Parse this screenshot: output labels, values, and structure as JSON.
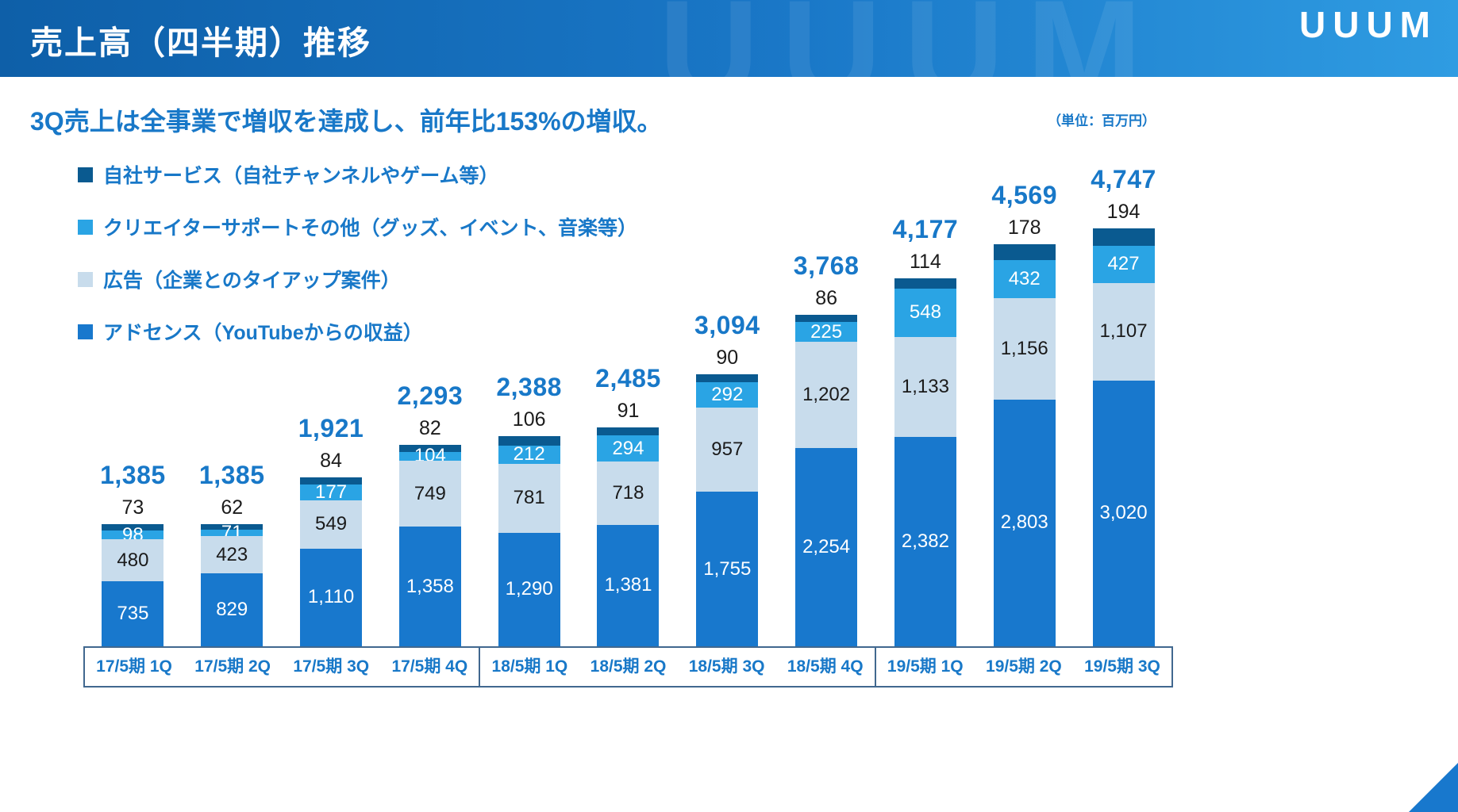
{
  "header": {
    "title": "売上高（四半期）推移",
    "logo": "UUUM"
  },
  "subtitle": "3Q売上は全事業で増収を達成し、前年比153%の増収。",
  "unit_note": "（単位：百万円）",
  "chart_data": {
    "type": "bar",
    "stacked": true,
    "title": "売上高（四半期）推移",
    "unit": "百万円",
    "grid": false,
    "legend_position": "top-left",
    "categories": [
      "17/5期 1Q",
      "17/5期 2Q",
      "17/5期 3Q",
      "17/5期 4Q",
      "18/5期 1Q",
      "18/5期 2Q",
      "18/5期 3Q",
      "18/5期 4Q",
      "19/5期 1Q",
      "19/5期 2Q",
      "19/5期 3Q"
    ],
    "series": [
      {
        "key": "adsense",
        "name": "アドセンス（YouTubeからの収益）",
        "color": "#1878cd",
        "label_color": "#ffffff",
        "values": [
          735,
          829,
          1110,
          1358,
          1290,
          1381,
          1755,
          2254,
          2382,
          2803,
          3020
        ]
      },
      {
        "key": "advertising",
        "name": "広告（企業とのタイアップ案件）",
        "color": "#c8dcec",
        "label_color": "#1a1a1a",
        "values": [
          480,
          423,
          549,
          749,
          781,
          718,
          957,
          1202,
          1133,
          1156,
          1107
        ]
      },
      {
        "key": "creator-support",
        "name": "クリエイターサポートその他（グッズ、イベント、音楽等）",
        "color": "#2aa4e4",
        "label_color": "#ffffff",
        "values": [
          98,
          71,
          177,
          104,
          212,
          294,
          292,
          225,
          548,
          432,
          427
        ]
      },
      {
        "key": "own-service",
        "name": "自社サービス（自社チャンネルやゲーム等）",
        "color": "#0a5a90",
        "label_color": "#111111",
        "label_position": "above",
        "values": [
          73,
          62,
          84,
          82,
          106,
          91,
          90,
          86,
          114,
          178,
          194
        ]
      }
    ],
    "totals": [
      1385,
      1385,
      1921,
      2293,
      2388,
      2485,
      3094,
      3768,
      4177,
      4569,
      4747
    ],
    "ylim": [
      0,
      4900
    ]
  }
}
